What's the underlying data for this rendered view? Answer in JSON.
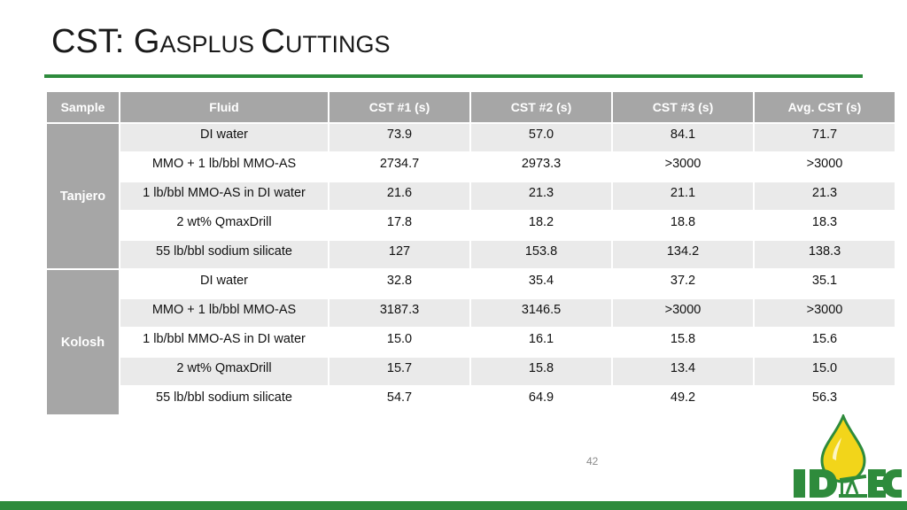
{
  "slide": {
    "title_main": "CST: ",
    "title_cap1": "G",
    "title_small1": "asplus ",
    "title_cap2": "C",
    "title_small2": "uttings",
    "page_number": "42",
    "logo_text": "IDEC"
  },
  "table": {
    "headers": [
      "Sample",
      "Fluid",
      "CST #1 (s)",
      "CST #2 (s)",
      "CST #3 (s)",
      "Avg. CST (s)"
    ],
    "groups": [
      {
        "sample": "Tanjero",
        "rows": [
          {
            "fluid": "DI water",
            "cst1": "73.9",
            "cst2": "57.0",
            "cst3": "84.1",
            "avg": "71.7"
          },
          {
            "fluid": "MMO + 1 lb/bbl MMO-AS",
            "cst1": "2734.7",
            "cst2": "2973.3",
            "cst3": ">3000",
            "avg": ">3000"
          },
          {
            "fluid": "1 lb/bbl MMO-AS in DI water",
            "cst1": "21.6",
            "cst2": "21.3",
            "cst3": "21.1",
            "avg": "21.3"
          },
          {
            "fluid": "2 wt% QmaxDrill",
            "cst1": "17.8",
            "cst2": "18.2",
            "cst3": "18.8",
            "avg": "18.3"
          },
          {
            "fluid": "55 lb/bbl sodium silicate",
            "cst1": "127",
            "cst2": "153.8",
            "cst3": "134.2",
            "avg": "138.3"
          }
        ]
      },
      {
        "sample": "Kolosh",
        "rows": [
          {
            "fluid": "DI water",
            "cst1": "32.8",
            "cst2": "35.4",
            "cst3": "37.2",
            "avg": "35.1"
          },
          {
            "fluid": "MMO + 1 lb/bbl MMO-AS",
            "cst1": "3187.3",
            "cst2": "3146.5",
            "cst3": ">3000",
            "avg": ">3000"
          },
          {
            "fluid": "1 lb/bbl MMO-AS in DI water",
            "cst1": "15.0",
            "cst2": "16.1",
            "cst3": "15.8",
            "avg": "15.6"
          },
          {
            "fluid": "2 wt% QmaxDrill",
            "cst1": "15.7",
            "cst2": "15.8",
            "cst3": "13.4",
            "avg": "15.0"
          },
          {
            "fluid": "55 lb/bbl sodium silicate",
            "cst1": "54.7",
            "cst2": "64.9",
            "cst3": "49.2",
            "avg": "56.3"
          }
        ]
      }
    ]
  },
  "colors": {
    "accent_green": "#2e8b3c",
    "header_gray": "#a6a6a6",
    "row_alt": "#eaeaea",
    "logo_yellow": "#f2d51a"
  }
}
